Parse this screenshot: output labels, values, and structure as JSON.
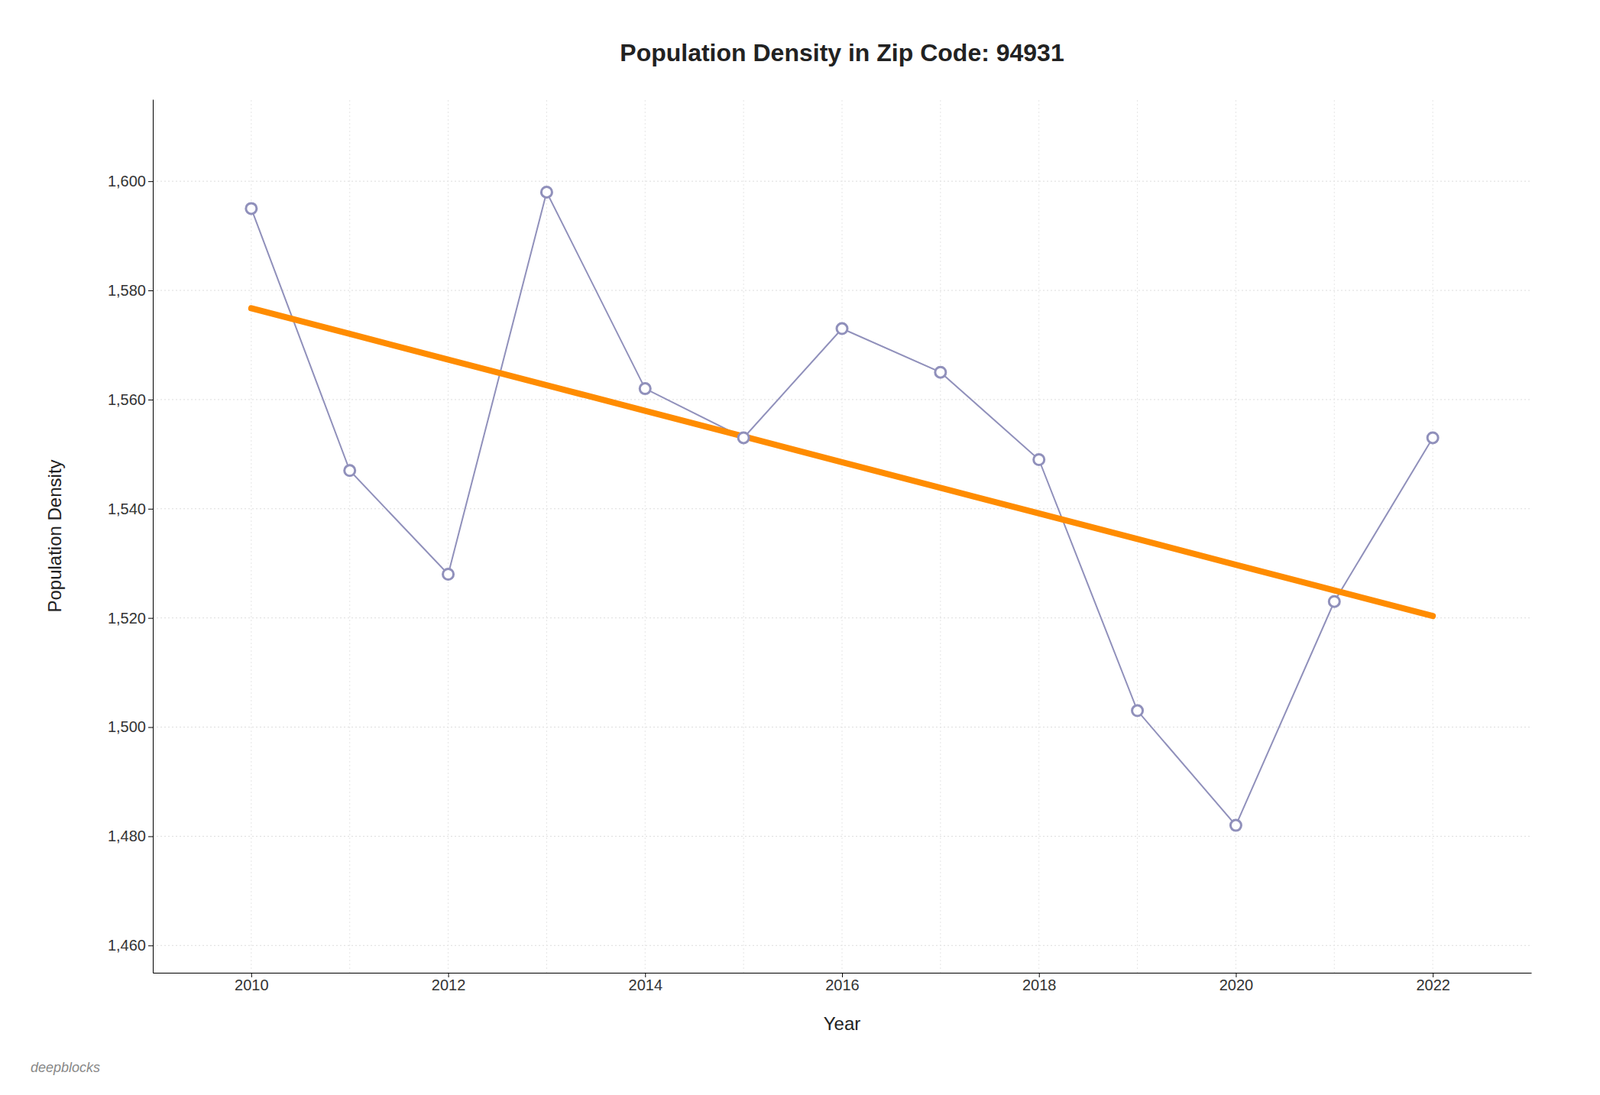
{
  "chart_data": {
    "type": "line",
    "title": "Population Density in Zip Code: 94931",
    "x_label": "Year",
    "y_label": "Population Density",
    "x": [
      2010,
      2011,
      2012,
      2013,
      2014,
      2015,
      2016,
      2017,
      2018,
      2019,
      2020,
      2021,
      2022
    ],
    "series": [
      {
        "color": "#9090bb",
        "marker": "circle",
        "line_style": "solid",
        "values": [
          1595,
          1547,
          1528,
          1598,
          1562,
          1553,
          1573,
          1565,
          1549,
          1503,
          1482,
          1523,
          1553
        ]
      },
      {
        "color": "#ff8c00",
        "line_style": "solid",
        "values": [
          1576.725275,
          1572.027473,
          1567.32967,
          1562.631868,
          1557.934066,
          1553.236264,
          1548.538462,
          1543.840659,
          1539.142857,
          1534.445055,
          1529.747253,
          1525.049451,
          1520.351648
        ]
      }
    ],
    "xlim": [
      2009,
      2023
    ],
    "xticks": [
      2010,
      2012,
      2014,
      2016,
      2018,
      2020,
      2022
    ],
    "ylim": [
      1455,
      1615
    ],
    "yticks": [
      {
        "value": 1460,
        "label": "1,460"
      },
      {
        "value": 1480,
        "label": "1,480"
      },
      {
        "value": 1500,
        "label": "1,500"
      },
      {
        "value": 1520,
        "label": "1,520"
      },
      {
        "value": 1540,
        "label": "1,540"
      },
      {
        "value": 1560,
        "label": "1,560"
      },
      {
        "value": 1580,
        "label": "1,580"
      },
      {
        "value": 1600,
        "label": "1,600"
      }
    ],
    "grid": true,
    "annotations": [
      "deepblocks"
    ]
  }
}
